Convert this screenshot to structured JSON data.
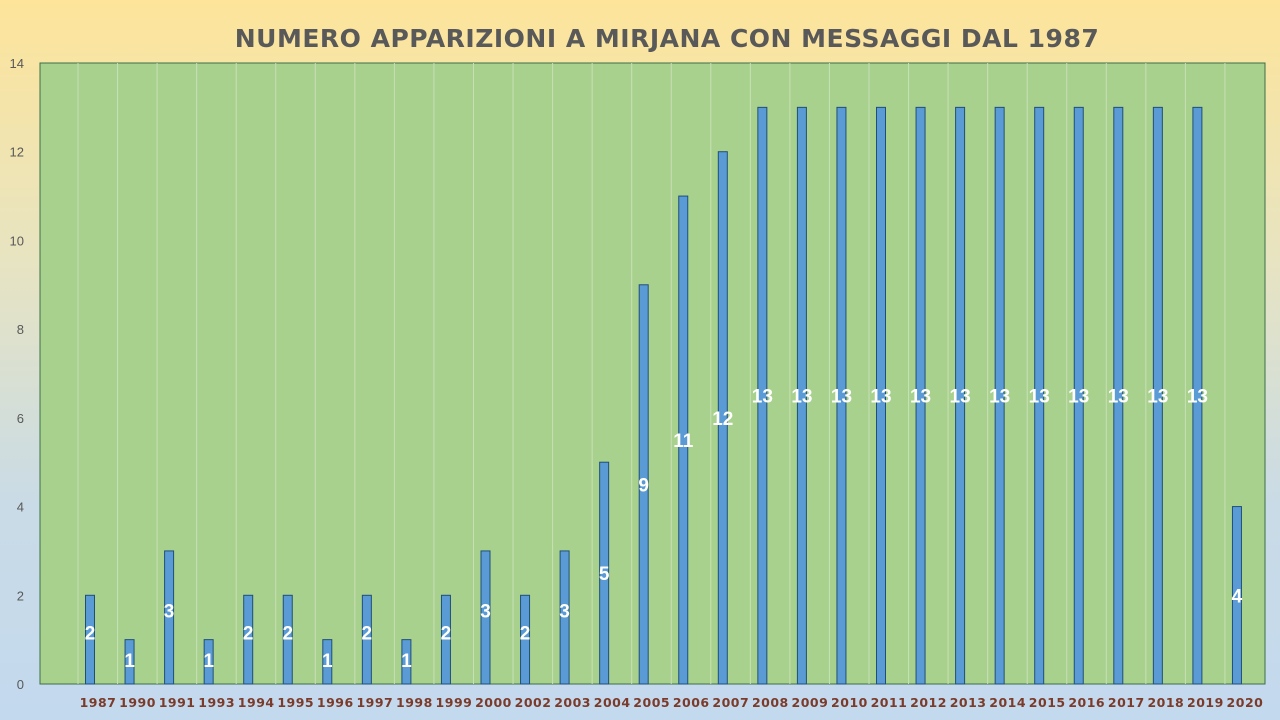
{
  "chart_data": {
    "type": "bar",
    "title": "NUMERO APPARIZIONI A MIRJANA CON MESSAGGI DAL 1987",
    "xlabel": "",
    "ylabel": "",
    "ylim": [
      0,
      14
    ],
    "yticks": [
      0,
      2,
      4,
      6,
      8,
      10,
      12,
      14
    ],
    "categories": [
      "1987",
      "1990",
      "1991",
      "1993",
      "1994",
      "1995",
      "1996",
      "1997",
      "1998",
      "1999",
      "2000",
      "2002",
      "2003",
      "2004",
      "2005",
      "2006",
      "2007",
      "2008",
      "2009",
      "2010",
      "2011",
      "2012",
      "2013",
      "2014",
      "2015",
      "2016",
      "2017",
      "2018",
      "2019",
      "2020"
    ],
    "values": [
      2,
      1,
      3,
      1,
      2,
      2,
      1,
      2,
      1,
      2,
      3,
      2,
      3,
      5,
      9,
      11,
      12,
      13,
      13,
      13,
      13,
      13,
      13,
      13,
      13,
      13,
      13,
      13,
      13,
      4
    ],
    "grid": true,
    "legend": "none",
    "colors": {
      "bar": "#5b9bd5",
      "bar_border": "#1f4e79",
      "plot_bg": "#a9d18e",
      "tick_label": "#7b3b2a",
      "data_label": "#ffffff"
    }
  }
}
